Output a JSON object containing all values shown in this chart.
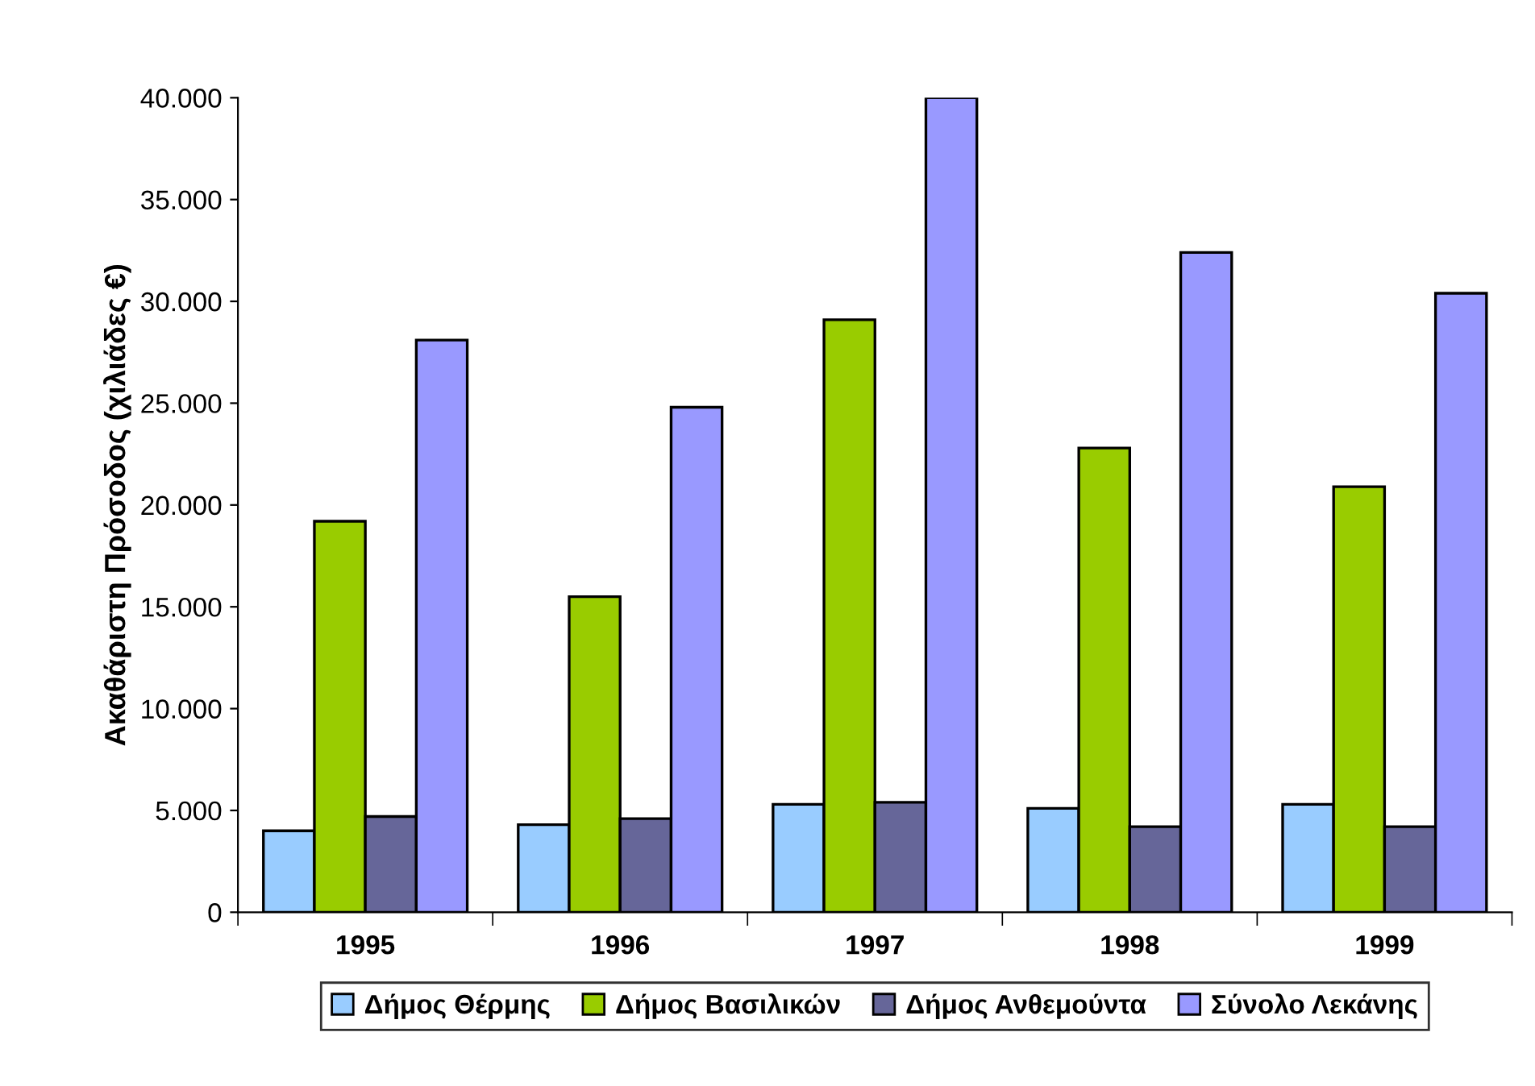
{
  "chart_data": {
    "type": "bar",
    "ylabel": "Ακαθάριστη Πρόσοδος (χιλιάδες €)",
    "categories": [
      "1995",
      "1996",
      "1997",
      "1998",
      "1999"
    ],
    "series": [
      {
        "name": "Δήμος Θέρμης",
        "color": "#99ccff",
        "values": [
          4000,
          4300,
          5300,
          5100,
          5300
        ]
      },
      {
        "name": "Δήμος Βασιλικών",
        "color": "#99cc00",
        "values": [
          19200,
          15500,
          29100,
          22800,
          20900
        ]
      },
      {
        "name": "Δήμος Ανθεμούντα",
        "color": "#666699",
        "values": [
          4700,
          4600,
          5400,
          4200,
          4200
        ]
      },
      {
        "name": "Σύνολο Λεκάνης",
        "color": "#9999ff",
        "values": [
          28100,
          24800,
          40000,
          32400,
          30400
        ]
      }
    ],
    "ylim": [
      0,
      40000
    ],
    "yticks": [
      {
        "value": 0,
        "label": "0"
      },
      {
        "value": 5000,
        "label": "5.000"
      },
      {
        "value": 10000,
        "label": "10.000"
      },
      {
        "value": 15000,
        "label": "15.000"
      },
      {
        "value": 20000,
        "label": "20.000"
      },
      {
        "value": 25000,
        "label": "25.000"
      },
      {
        "value": 30000,
        "label": "30.000"
      },
      {
        "value": 35000,
        "label": "35.000"
      },
      {
        "value": 40000,
        "label": "40.000"
      }
    ],
    "grid": false,
    "legend": "bottom"
  }
}
